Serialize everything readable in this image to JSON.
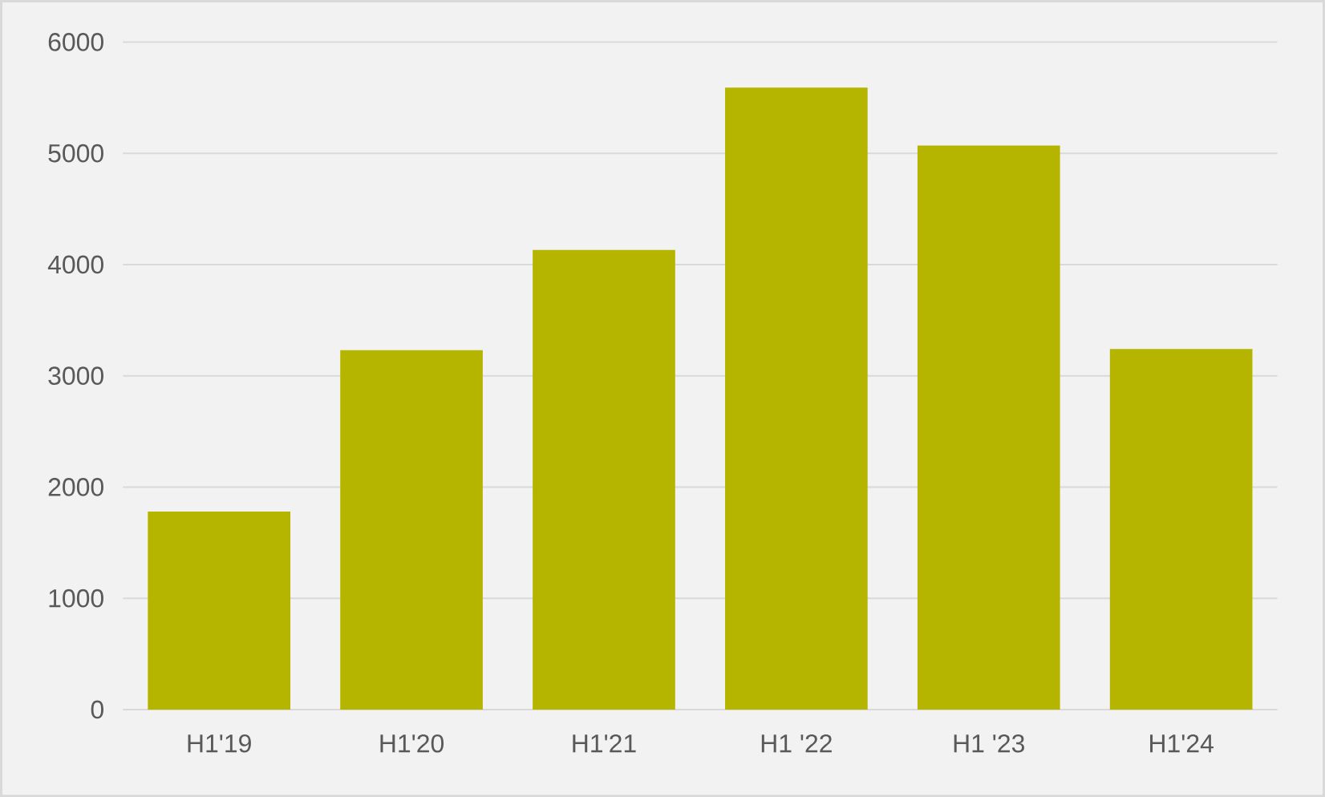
{
  "chart_data": {
    "type": "bar",
    "categories": [
      "H1'19",
      "H1'20",
      "H1'21",
      "H1 '22",
      "H1 '23",
      "H1'24"
    ],
    "values": [
      1780,
      3230,
      4130,
      5590,
      5070,
      3240
    ],
    "color": "#b5b500",
    "ylim": [
      0,
      6000
    ],
    "yticks": [
      0,
      1000,
      2000,
      3000,
      4000,
      5000,
      6000
    ],
    "grid": "y"
  }
}
